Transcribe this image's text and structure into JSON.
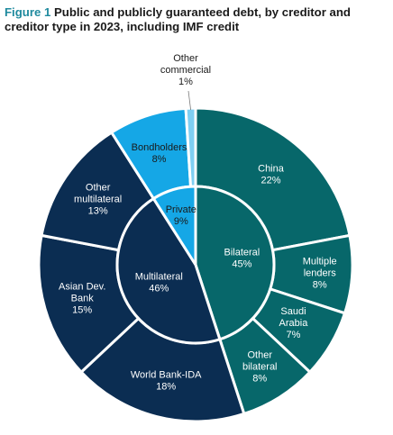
{
  "figure": {
    "label": "Figure 1",
    "title": "Public and publicly guaranteed debt, by creditor and creditor type in 2023, including IMF credit"
  },
  "colors": {
    "bilateral": "#07676a",
    "multilateral": "#0b2d52",
    "private": "#15a7e6",
    "other_commercial": "#7fcff2",
    "figure_label": "#1f8a9e",
    "label_on_dark": "#ffffff",
    "label_on_light": "#1a1a1a",
    "separator": "#ffffff"
  },
  "chart_data": {
    "type": "pie",
    "variant": "two-level donut (sunburst)",
    "start_angle_deg": 0,
    "direction": "clockwise",
    "inner_ring": [
      {
        "name": "Bilateral",
        "value": 45,
        "label": "45%",
        "group": "bilateral"
      },
      {
        "name": "Multilateral",
        "value": 46,
        "label": "46%",
        "group": "multilateral"
      },
      {
        "name": "Private",
        "value": 9,
        "label": "9%",
        "group": "private"
      }
    ],
    "outer_ring": [
      {
        "name": "China",
        "value": 22,
        "label": "22%",
        "group": "bilateral"
      },
      {
        "name": "Multiple lenders",
        "value": 8,
        "label": "8%",
        "group": "bilateral"
      },
      {
        "name": "Saudi Arabia",
        "value": 7,
        "label": "7%",
        "group": "bilateral"
      },
      {
        "name": "Other bilateral",
        "value": 8,
        "label": "8%",
        "group": "bilateral"
      },
      {
        "name": "World Bank-IDA",
        "value": 18,
        "label": "18%",
        "group": "multilateral"
      },
      {
        "name": "Asian Dev. Bank",
        "value": 15,
        "label": "15%",
        "group": "multilateral"
      },
      {
        "name": "Other multilateral",
        "value": 13,
        "label": "13%",
        "group": "multilateral"
      },
      {
        "name": "Bondholders",
        "value": 8,
        "label": "8%",
        "group": "private"
      },
      {
        "name": "Other commercial",
        "value": 1,
        "label": "1%",
        "group": "other_commercial"
      }
    ]
  }
}
